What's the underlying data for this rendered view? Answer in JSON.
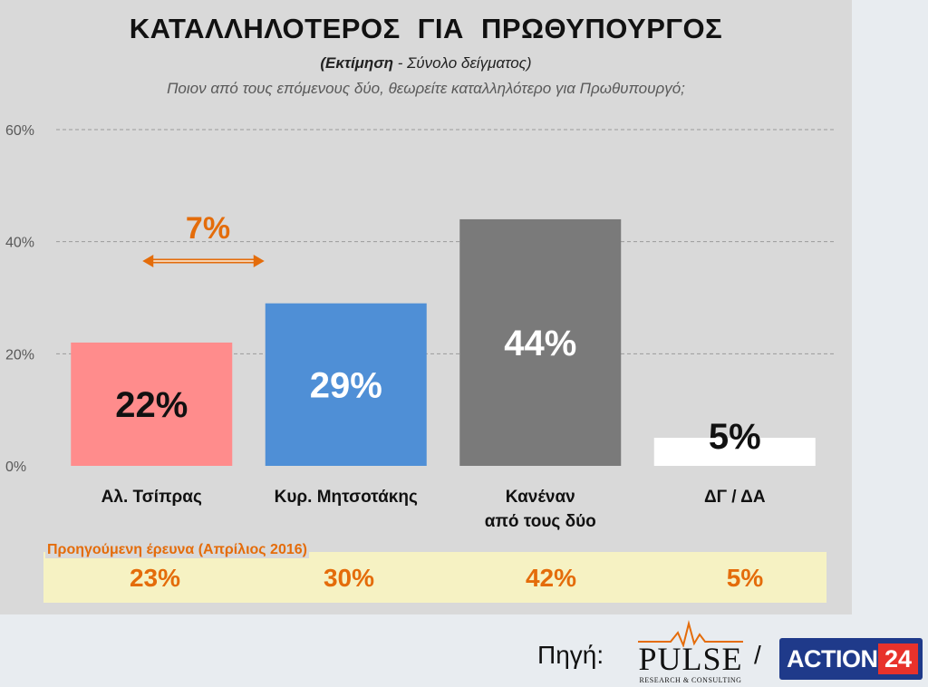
{
  "header": {
    "title": "ΚΑΤΑΛΛΗΛΟΤΕΡΟΣ ΓΙΑ ΠΡΩΘΥΠΟΥΡΓΟΣ",
    "subtitle_bold": "(Εκτίμηση",
    "subtitle_rest": " - Σύνολο δείγματος)",
    "question": "Ποιον από τους επόμενους δύο, θεωρείτε καταλληλότερο για Πρωθυπουργό;"
  },
  "chart_data": {
    "type": "bar",
    "categories": [
      [
        "Αλ. Τσίπρας"
      ],
      [
        "Κυρ. Μητσοτάκης"
      ],
      [
        "Κανέναν",
        "από τους δύο"
      ],
      [
        "ΔΓ / ΔΑ"
      ]
    ],
    "values": [
      22,
      29,
      44,
      5
    ],
    "value_labels": [
      "22%",
      "29%",
      "44%",
      "5%"
    ],
    "bar_colors": [
      "#ff8c8c",
      "#4f8fd6",
      "#7a7a7a",
      "#ffffff"
    ],
    "value_label_colors": [
      "#111111",
      "#ffffff",
      "#ffffff",
      "#111111"
    ],
    "ylim": [
      0,
      60
    ],
    "y_ticks": [
      0,
      20,
      40,
      60
    ],
    "y_tick_labels": [
      "0%",
      "20%",
      "40%",
      "60%"
    ],
    "grid": true,
    "annotation": {
      "label": "7%",
      "between_categories": [
        0,
        1
      ],
      "color": "#e46c0a"
    }
  },
  "previous_survey": {
    "title": "Προηγούμενη έρευνα (Απρίλιος 2016)",
    "values": [
      "23%",
      "30%",
      "42%",
      "5%"
    ]
  },
  "footer": {
    "source_label": "Πηγή:",
    "pulse_word": "PULSE",
    "pulse_sub": "RESEARCH & CONSULTING",
    "separator": "/",
    "action_text": "ACTION",
    "action_num": "24"
  }
}
